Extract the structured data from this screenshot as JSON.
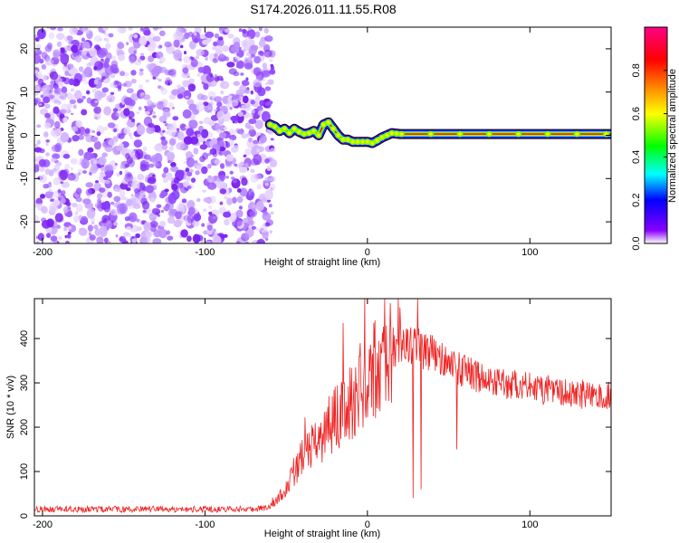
{
  "page_title": "S174.2026.011.11.55.R08",
  "chart_data": [
    {
      "id": "spectrogram",
      "type": "heatmap",
      "title": "S174.2026.011.11.55.R08",
      "xlabel": "Height of straight line (km)",
      "ylabel": "Frequency (Hz)",
      "xlim": [
        -205,
        150
      ],
      "ylim": [
        -25,
        25
      ],
      "xticks": [
        -200,
        -100,
        0,
        100
      ],
      "xtick_labels": [
        "-200",
        "-100",
        "0",
        "100"
      ],
      "yticks": [
        -20,
        -10,
        0,
        10,
        20
      ],
      "ytick_labels": [
        "-20",
        "-10",
        "0",
        "10",
        "20"
      ],
      "colorbar": {
        "label": "Normalized spectral amplitude",
        "range": [
          0,
          1
        ],
        "ticks": [
          0,
          0.2,
          0.4,
          0.6,
          0.8
        ],
        "tick_labels": [
          "0.0",
          "0.2",
          "0.4",
          "0.6",
          "0.8"
        ],
        "colors": [
          "#ffffff",
          "#8800ff",
          "#0000ff",
          "#00ffff",
          "#00ff00",
          "#ffff00",
          "#ff8800",
          "#ff0000",
          "#ff0088"
        ]
      },
      "noise_region": {
        "x": [
          -205,
          -60
        ],
        "amplitude_range": [
          0.0,
          0.15
        ]
      },
      "ridge": {
        "x": [
          -60,
          -57,
          -54,
          -51,
          -48,
          -45,
          -42,
          -39,
          -36,
          -33,
          -30,
          -27,
          -24,
          -21,
          -18,
          -15,
          -12,
          -9,
          -6,
          -3,
          0,
          3,
          6,
          9,
          12,
          15,
          20,
          40,
          60,
          80,
          100,
          107,
          120,
          150
        ],
        "freq": [
          2.5,
          2.0,
          1.0,
          1.5,
          0.5,
          1.5,
          0.8,
          0.3,
          0.5,
          1.0,
          0.0,
          2.5,
          3.0,
          1.5,
          0.0,
          -1.0,
          -1.0,
          -1.5,
          -1.5,
          -1.5,
          -1.5,
          -1.8,
          -1.2,
          -0.5,
          0.0,
          0.5,
          0.3,
          0.3,
          0.3,
          0.3,
          0.3,
          0.3,
          0.3,
          0.3
        ]
      }
    },
    {
      "id": "snr",
      "type": "line",
      "xlabel": "Height of straight line (km)",
      "ylabel": "SNR (10 * v/v)",
      "xlim": [
        -205,
        150
      ],
      "ylim": [
        0,
        490
      ],
      "xticks": [
        -200,
        -100,
        0,
        100
      ],
      "xtick_labels": [
        "-200",
        "-100",
        "0",
        "100"
      ],
      "yticks": [
        0,
        100,
        200,
        300,
        400
      ],
      "ytick_labels": [
        "0",
        "100",
        "200",
        "300",
        "400"
      ],
      "line_color": "#ee2222",
      "envelope": {
        "x": [
          -205,
          -150,
          -100,
          -70,
          -60,
          -50,
          -45,
          -40,
          -35,
          -30,
          -25,
          -20,
          -15,
          -10,
          -5,
          0,
          5,
          10,
          15,
          20,
          25,
          30,
          35,
          40,
          50,
          60,
          70,
          80,
          90,
          100,
          110,
          120,
          130,
          140,
          150
        ],
        "y": [
          15,
          15,
          15,
          15,
          20,
          60,
          100,
          130,
          150,
          170,
          200,
          220,
          235,
          260,
          290,
          310,
          330,
          360,
          380,
          385,
          385,
          380,
          375,
          370,
          340,
          325,
          310,
          300,
          295,
          290,
          285,
          280,
          275,
          272,
          270
        ]
      },
      "spikes": [
        {
          "x": -15,
          "y": 435
        },
        {
          "x": -5,
          "y": 360
        },
        {
          "x": 14,
          "y": 480
        },
        {
          "x": 20,
          "y": 470
        },
        {
          "x": 31,
          "y": 490
        },
        {
          "x": 28,
          "y": 40
        },
        {
          "x": 33,
          "y": 60
        },
        {
          "x": 55,
          "y": 150
        }
      ]
    }
  ]
}
